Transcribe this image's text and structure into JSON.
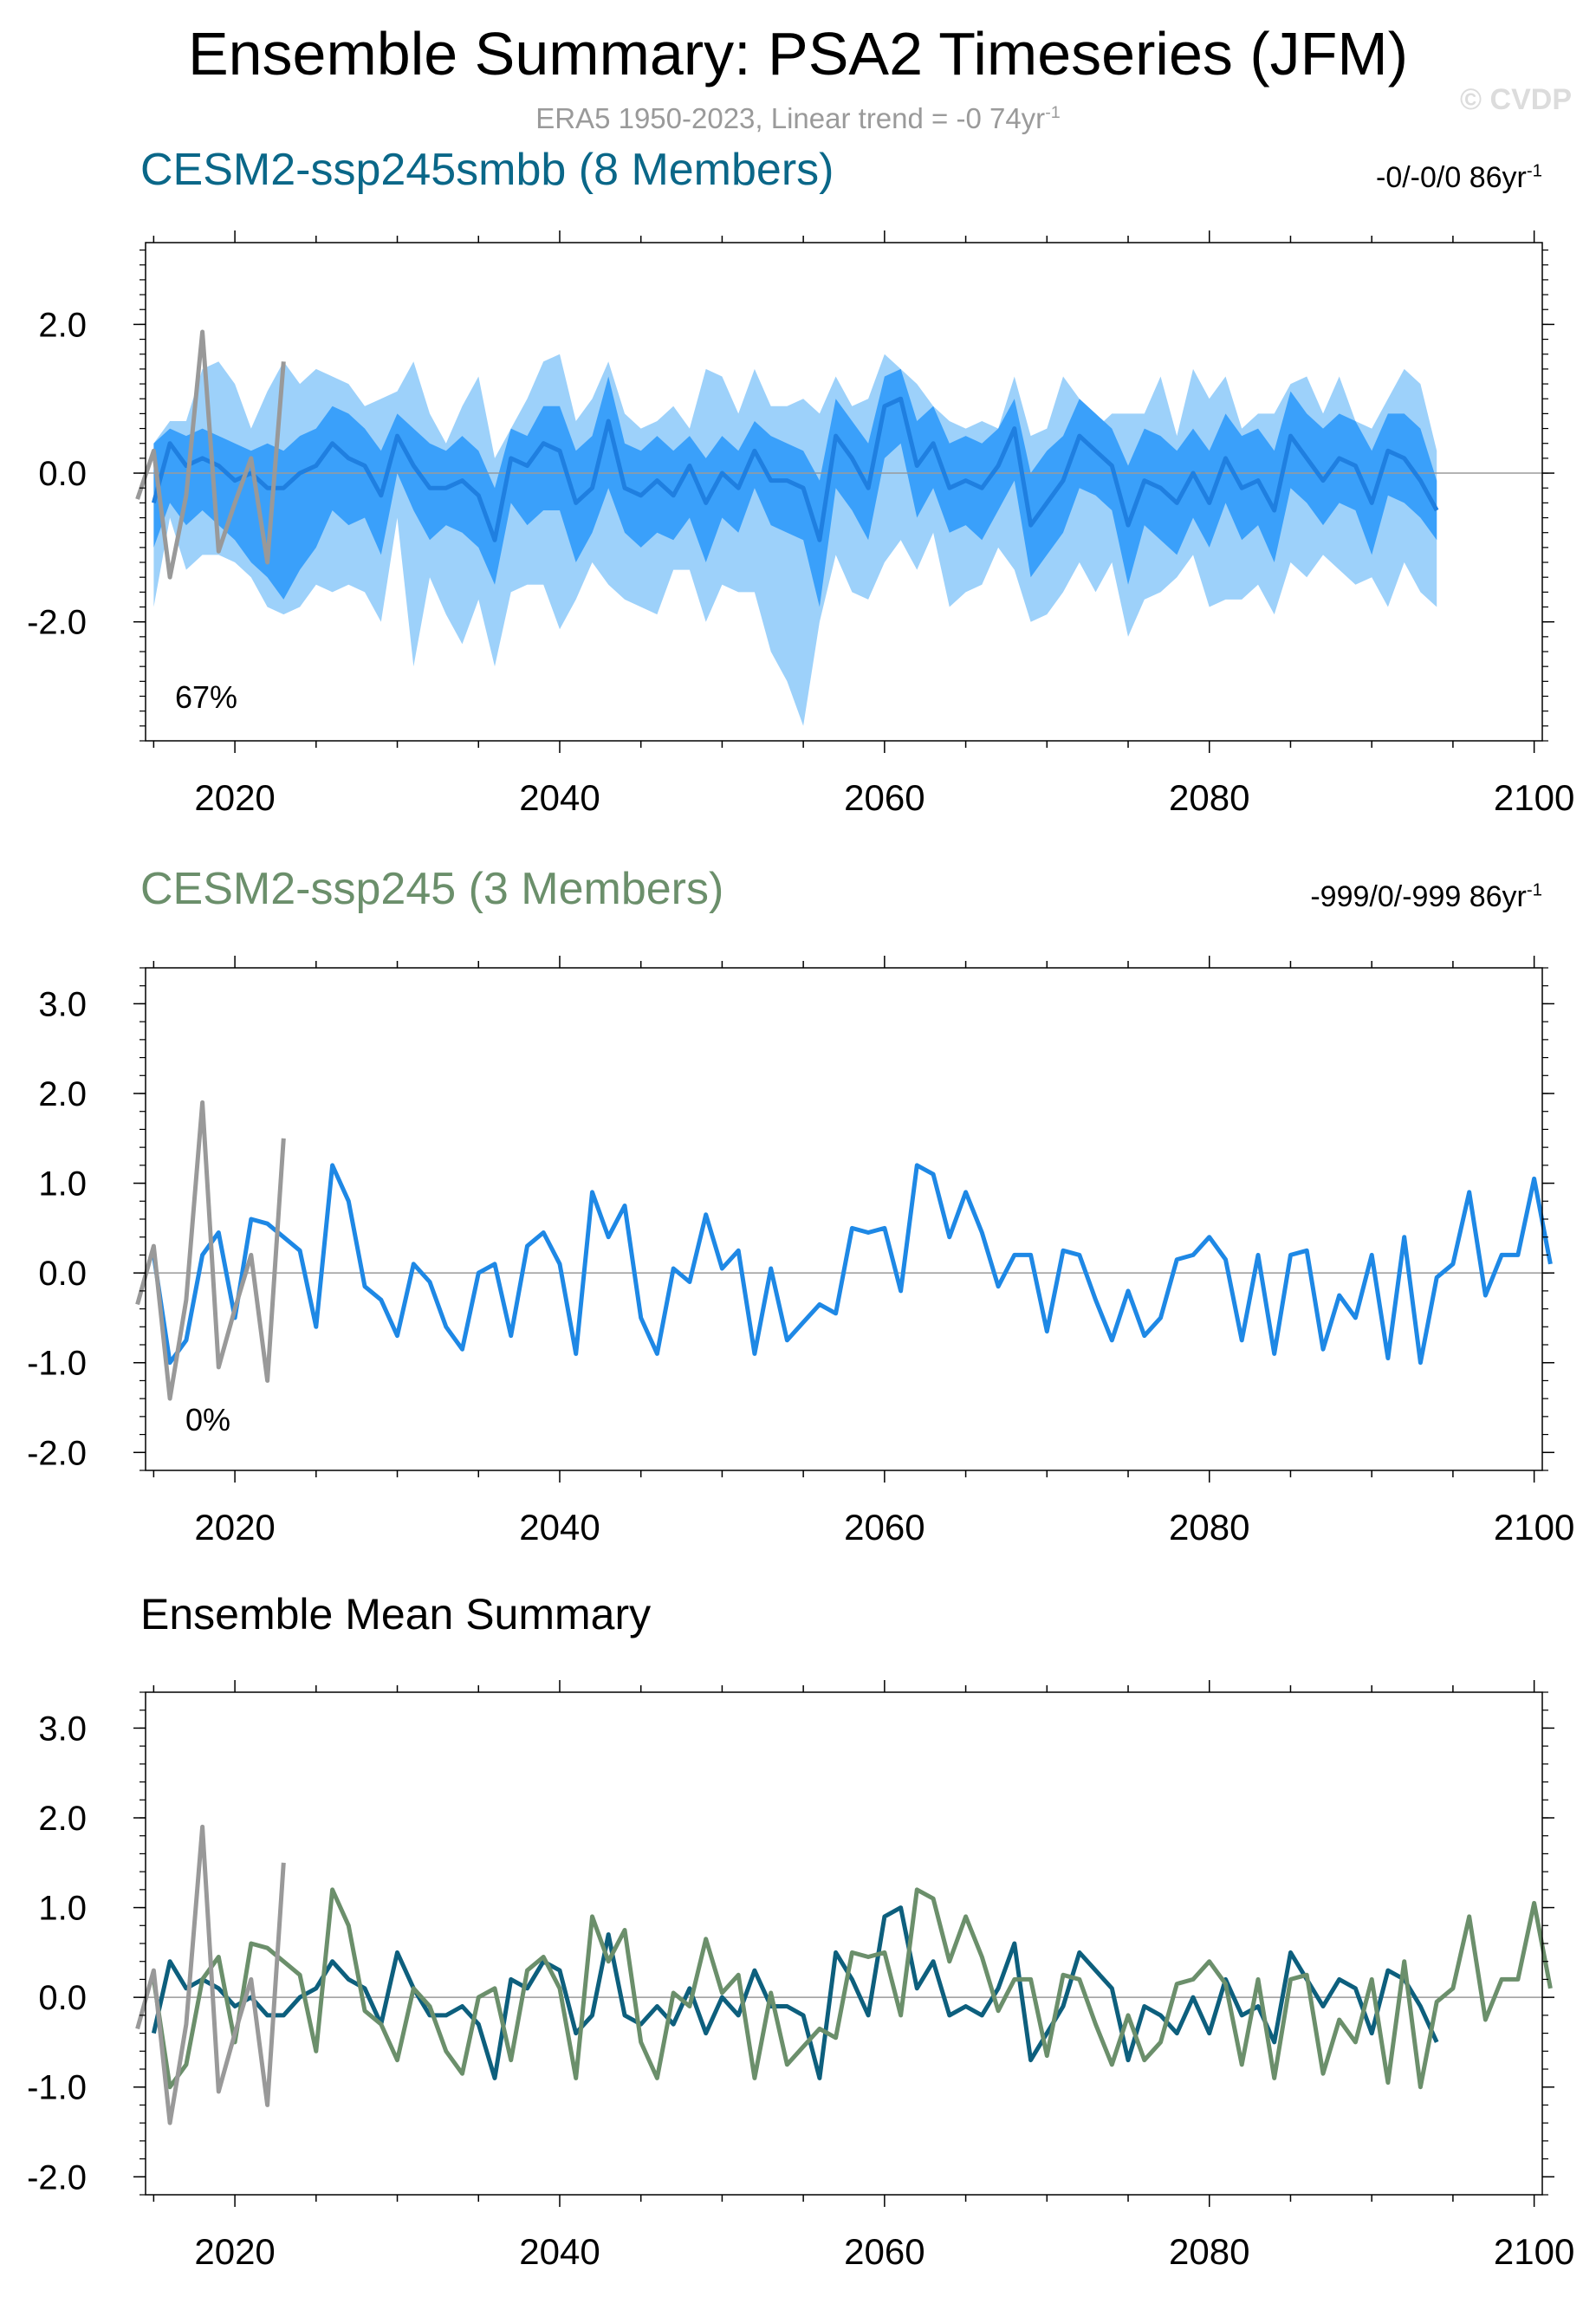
{
  "header": {
    "title": "Ensemble Summary: PSA2 Timeseries (JFM)",
    "subtitle_prefix": "ERA5 1950-2023, Linear trend = -0 74yr",
    "subtitle_sup": "-1",
    "watermark": "© CVDP"
  },
  "colors": {
    "obs": "#999999",
    "blue_line": "#1e88e5",
    "band_outer": "#9dd1fa",
    "band_inner": "#3aa0fa",
    "ens1_title": "#0a6788",
    "ens2_title": "#6b8f6b",
    "mean_dark": "#0d5f7d",
    "mean_green": "#6b8f6b"
  },
  "panels": {
    "p1": {
      "title": "CESM2-ssp245smbb (8 Members)",
      "trend_text": "-0/-0/0 86yr",
      "trend_sup": "-1",
      "percent": "67%"
    },
    "p2": {
      "title": "CESM2-ssp245 (3 Members)",
      "trend_text": "-999/0/-999 86yr",
      "trend_sup": "-1",
      "percent": "0%"
    },
    "p3": {
      "title": "Ensemble Mean Summary"
    }
  },
  "chart_data": [
    {
      "type": "area",
      "title": "CESM2-ssp245smbb (8 Members)",
      "x_start": 2015,
      "xlim": [
        2014.5,
        2100.5
      ],
      "ylim": [
        -3.6,
        3.1
      ],
      "x_ticks": [
        2020,
        2040,
        2060,
        2080,
        2100
      ],
      "y_ticks": [
        -2.0,
        0.0,
        2.0
      ],
      "y_tick_labels": [
        "-2.0",
        "0.0",
        "2.0"
      ],
      "observations": {
        "name": "ERA5",
        "x_start": 2014,
        "values": [
          -0.35,
          0.3,
          -1.4,
          -0.3,
          1.9,
          -1.05,
          -0.4,
          0.2,
          -1.2,
          1.5
        ]
      },
      "ensemble_mean": [
        -0.4,
        0.4,
        0.1,
        0.2,
        0.1,
        -0.1,
        0.0,
        -0.2,
        -0.2,
        0.0,
        0.1,
        0.4,
        0.2,
        0.1,
        -0.3,
        0.5,
        0.1,
        -0.2,
        -0.2,
        -0.1,
        -0.3,
        -0.9,
        0.2,
        0.1,
        0.4,
        0.3,
        -0.4,
        -0.2,
        0.7,
        -0.2,
        -0.3,
        -0.1,
        -0.3,
        0.1,
        -0.4,
        0.0,
        -0.2,
        0.3,
        -0.1,
        -0.1,
        -0.2,
        -0.9,
        0.5,
        0.2,
        -0.2,
        0.9,
        1.0,
        0.1,
        0.4,
        -0.2,
        -0.1,
        -0.2,
        0.1,
        0.6,
        -0.7,
        -0.4,
        -0.1,
        0.5,
        0.3,
        0.1,
        -0.7,
        -0.1,
        -0.2,
        -0.4,
        0.0,
        -0.4,
        0.2,
        -0.2,
        -0.1,
        -0.5,
        0.5,
        0.2,
        -0.1,
        0.2,
        0.1,
        -0.4,
        0.3,
        0.2,
        -0.1,
        -0.5
      ],
      "inner_band_upper": [
        0.4,
        0.6,
        0.5,
        0.6,
        0.5,
        0.4,
        0.3,
        0.4,
        0.3,
        0.5,
        0.6,
        0.9,
        0.8,
        0.6,
        0.3,
        0.8,
        0.6,
        0.4,
        0.3,
        0.5,
        0.3,
        -0.2,
        0.6,
        0.5,
        0.9,
        0.9,
        0.3,
        0.5,
        1.3,
        0.4,
        0.3,
        0.5,
        0.3,
        0.5,
        0.2,
        0.5,
        0.3,
        0.7,
        0.5,
        0.4,
        0.3,
        -0.1,
        1.0,
        0.7,
        0.4,
        1.3,
        1.4,
        0.7,
        0.9,
        0.4,
        0.5,
        0.4,
        0.6,
        1.0,
        0.0,
        0.3,
        0.5,
        1.0,
        0.8,
        0.6,
        0.1,
        0.6,
        0.5,
        0.3,
        0.6,
        0.3,
        0.8,
        0.5,
        0.6,
        0.3,
        1.1,
        0.8,
        0.6,
        0.8,
        0.7,
        0.3,
        0.8,
        0.8,
        0.6,
        -0.1
      ],
      "inner_band_lower": [
        -1.0,
        -0.4,
        -0.7,
        -0.5,
        -0.7,
        -0.9,
        -1.2,
        -1.4,
        -1.7,
        -1.3,
        -1.0,
        -0.5,
        -0.7,
        -0.6,
        -1.1,
        0.0,
        -0.5,
        -0.9,
        -0.7,
        -0.8,
        -1.0,
        -1.5,
        -0.4,
        -0.7,
        -0.5,
        -0.5,
        -1.2,
        -0.8,
        -0.2,
        -0.8,
        -1.0,
        -0.8,
        -0.9,
        -0.6,
        -1.2,
        -0.6,
        -0.8,
        -0.2,
        -0.7,
        -0.8,
        -0.9,
        -1.8,
        -0.2,
        -0.5,
        -0.9,
        0.2,
        0.4,
        -0.6,
        -0.2,
        -0.8,
        -0.7,
        -0.9,
        -0.5,
        -0.1,
        -1.4,
        -1.1,
        -0.8,
        -0.2,
        -0.3,
        -0.5,
        -1.5,
        -0.7,
        -0.9,
        -1.1,
        -0.6,
        -1.0,
        -0.4,
        -0.9,
        -0.7,
        -1.2,
        -0.2,
        -0.4,
        -0.7,
        -0.4,
        -0.5,
        -1.1,
        -0.3,
        -0.4,
        -0.6,
        -0.9
      ],
      "outer_band_upper": [
        0.4,
        0.7,
        0.7,
        1.4,
        1.5,
        1.2,
        0.6,
        1.1,
        1.5,
        1.2,
        1.4,
        1.3,
        1.2,
        0.9,
        1.0,
        1.1,
        1.5,
        0.8,
        0.4,
        0.9,
        1.3,
        0.2,
        0.6,
        1.0,
        1.5,
        1.6,
        0.7,
        1.0,
        1.5,
        0.8,
        0.6,
        0.7,
        0.9,
        0.6,
        1.4,
        1.3,
        0.8,
        1.4,
        0.9,
        0.9,
        1.0,
        0.8,
        1.3,
        0.9,
        1.0,
        1.6,
        1.4,
        1.2,
        0.9,
        0.7,
        0.6,
        0.7,
        0.6,
        1.3,
        0.5,
        0.6,
        1.3,
        1.0,
        0.6,
        0.8,
        0.8,
        0.8,
        1.3,
        0.5,
        1.4,
        1.0,
        1.3,
        0.6,
        0.8,
        0.8,
        1.2,
        1.3,
        0.8,
        1.3,
        0.7,
        0.6,
        1.0,
        1.4,
        1.2,
        0.3
      ],
      "outer_band_lower": [
        -1.8,
        -0.6,
        -1.3,
        -1.1,
        -1.1,
        -1.2,
        -1.4,
        -1.8,
        -1.9,
        -1.8,
        -1.5,
        -1.6,
        -1.5,
        -1.6,
        -2.0,
        -0.6,
        -2.6,
        -1.4,
        -1.9,
        -2.3,
        -1.7,
        -2.6,
        -1.6,
        -1.5,
        -1.5,
        -2.1,
        -1.7,
        -1.2,
        -1.5,
        -1.7,
        -1.8,
        -1.9,
        -1.3,
        -1.3,
        -2.0,
        -1.5,
        -1.6,
        -1.6,
        -2.4,
        -2.8,
        -3.4,
        -2.0,
        -1.1,
        -1.6,
        -1.7,
        -1.2,
        -0.9,
        -1.3,
        -0.8,
        -1.8,
        -1.6,
        -1.5,
        -1.0,
        -1.3,
        -2.0,
        -1.9,
        -1.6,
        -1.2,
        -1.6,
        -1.2,
        -2.2,
        -1.7,
        -1.6,
        -1.4,
        -1.1,
        -1.8,
        -1.7,
        -1.7,
        -1.5,
        -1.9,
        -1.2,
        -1.4,
        -1.1,
        -1.3,
        -1.5,
        -1.4,
        -1.8,
        -1.2,
        -1.6,
        -1.8
      ]
    },
    {
      "type": "line",
      "title": "CESM2-ssp245 (3 Members)",
      "x_start": 2015,
      "xlim": [
        2014.5,
        2100.5
      ],
      "ylim": [
        -2.2,
        3.4
      ],
      "x_ticks": [
        2020,
        2040,
        2060,
        2080,
        2100
      ],
      "y_ticks": [
        -2.0,
        -1.0,
        0.0,
        1.0,
        2.0,
        3.0
      ],
      "y_tick_labels": [
        "-2.0",
        "-1.0",
        "0.0",
        "1.0",
        "2.0",
        "3.0"
      ],
      "observations": {
        "name": "ERA5",
        "x_start": 2014,
        "values": [
          -0.35,
          0.3,
          -1.4,
          -0.3,
          1.9,
          -1.05,
          -0.4,
          0.2,
          -1.2,
          1.5
        ]
      },
      "series": [
        {
          "name": "CESM2-ssp245",
          "values": [
            0.2,
            -1.0,
            -0.75,
            0.2,
            0.45,
            -0.5,
            0.6,
            0.55,
            0.4,
            0.25,
            -0.6,
            1.2,
            0.8,
            -0.15,
            -0.3,
            -0.7,
            0.1,
            -0.1,
            -0.6,
            -0.85,
            0.0,
            0.1,
            -0.7,
            0.3,
            0.45,
            0.1,
            -0.9,
            0.9,
            0.4,
            0.75,
            -0.5,
            -0.9,
            0.05,
            -0.1,
            0.65,
            0.05,
            0.25,
            -0.9,
            0.05,
            -0.75,
            -0.55,
            -0.35,
            -0.45,
            0.5,
            0.45,
            0.5,
            -0.2,
            1.2,
            1.1,
            0.4,
            0.9,
            0.45,
            -0.15,
            0.2,
            0.2,
            -0.65,
            0.25,
            0.2,
            -0.3,
            -0.75,
            -0.2,
            -0.7,
            -0.5,
            0.15,
            0.2,
            0.4,
            0.15,
            -0.75,
            0.2,
            -0.9,
            0.2,
            0.25,
            -0.85,
            -0.25,
            -0.5,
            0.2,
            -0.95,
            0.4,
            -1.0,
            -0.05,
            0.1,
            0.9,
            -0.25,
            0.2,
            0.2,
            1.05,
            0.1
          ]
        }
      ]
    },
    {
      "type": "line",
      "title": "Ensemble Mean Summary",
      "x_start": 2015,
      "xlim": [
        2014.5,
        2100.5
      ],
      "ylim": [
        -2.2,
        3.4
      ],
      "x_ticks": [
        2020,
        2040,
        2060,
        2080,
        2100
      ],
      "y_ticks": [
        -2.0,
        -1.0,
        0.0,
        1.0,
        2.0,
        3.0
      ],
      "y_tick_labels": [
        "-2.0",
        "-1.0",
        "0.0",
        "1.0",
        "2.0",
        "3.0"
      ],
      "observations": {
        "name": "ERA5",
        "x_start": 2014,
        "values": [
          -0.35,
          0.3,
          -1.4,
          -0.3,
          1.9,
          -1.05,
          -0.4,
          0.2,
          -1.2,
          1.5
        ]
      },
      "series": [
        {
          "name": "CESM2-ssp245smbb",
          "values": [
            -0.4,
            0.4,
            0.1,
            0.2,
            0.1,
            -0.1,
            0.0,
            -0.2,
            -0.2,
            0.0,
            0.1,
            0.4,
            0.2,
            0.1,
            -0.3,
            0.5,
            0.1,
            -0.2,
            -0.2,
            -0.1,
            -0.3,
            -0.9,
            0.2,
            0.1,
            0.4,
            0.3,
            -0.4,
            -0.2,
            0.7,
            -0.2,
            -0.3,
            -0.1,
            -0.3,
            0.1,
            -0.4,
            0.0,
            -0.2,
            0.3,
            -0.1,
            -0.1,
            -0.2,
            -0.9,
            0.5,
            0.2,
            -0.2,
            0.9,
            1.0,
            0.1,
            0.4,
            -0.2,
            -0.1,
            -0.2,
            0.1,
            0.6,
            -0.7,
            -0.4,
            -0.1,
            0.5,
            0.3,
            0.1,
            -0.7,
            -0.1,
            -0.2,
            -0.4,
            0.0,
            -0.4,
            0.2,
            -0.2,
            -0.1,
            -0.5,
            0.5,
            0.2,
            -0.1,
            0.2,
            0.1,
            -0.4,
            0.3,
            0.2,
            -0.1,
            -0.5
          ]
        },
        {
          "name": "CESM2-ssp245",
          "values": [
            0.2,
            -1.0,
            -0.75,
            0.2,
            0.45,
            -0.5,
            0.6,
            0.55,
            0.4,
            0.25,
            -0.6,
            1.2,
            0.8,
            -0.15,
            -0.3,
            -0.7,
            0.1,
            -0.1,
            -0.6,
            -0.85,
            0.0,
            0.1,
            -0.7,
            0.3,
            0.45,
            0.1,
            -0.9,
            0.9,
            0.4,
            0.75,
            -0.5,
            -0.9,
            0.05,
            -0.1,
            0.65,
            0.05,
            0.25,
            -0.9,
            0.05,
            -0.75,
            -0.55,
            -0.35,
            -0.45,
            0.5,
            0.45,
            0.5,
            -0.2,
            1.2,
            1.1,
            0.4,
            0.9,
            0.45,
            -0.15,
            0.2,
            0.2,
            -0.65,
            0.25,
            0.2,
            -0.3,
            -0.75,
            -0.2,
            -0.7,
            -0.5,
            0.15,
            0.2,
            0.4,
            0.15,
            -0.75,
            0.2,
            -0.9,
            0.2,
            0.25,
            -0.85,
            -0.25,
            -0.5,
            0.2,
            -0.95,
            0.4,
            -1.0,
            -0.05,
            0.1,
            0.9,
            -0.25,
            0.2,
            0.2,
            1.05,
            0.1
          ]
        }
      ]
    }
  ]
}
